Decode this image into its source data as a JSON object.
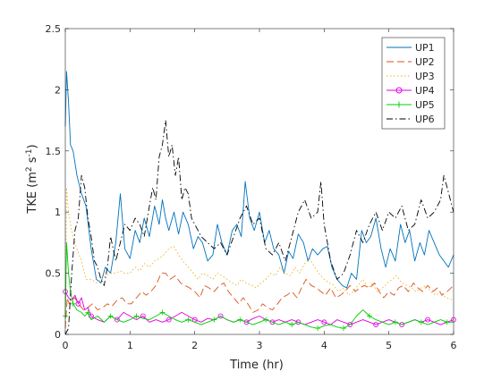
{
  "chart_data": {
    "type": "line",
    "xlabel": "Time (hr)",
    "ylabel_main": "TKE (m",
    "ylabel_sup1": "2",
    "ylabel_mid": " s",
    "ylabel_sup2": "-1",
    "ylabel_end": ")",
    "xlim": [
      0,
      6
    ],
    "ylim": [
      0,
      2.5
    ],
    "xticks": [
      0,
      1,
      2,
      3,
      4,
      5,
      6
    ],
    "xtick_labels": [
      "0",
      "1",
      "2",
      "3",
      "4",
      "5",
      "6"
    ],
    "yticks": [
      0,
      0.5,
      1,
      1.5,
      2,
      2.5
    ],
    "ytick_labels": [
      "0",
      "0.5",
      "1",
      "1.5",
      "2",
      "2.5"
    ],
    "grid": false,
    "legend_position": "top-right",
    "series": [
      {
        "name": "UP1",
        "color": "#0072BD",
        "dash": "solid",
        "marker": "none",
        "x": [
          0,
          0.02,
          0.05,
          0.08,
          0.12,
          0.18,
          0.25,
          0.32,
          0.4,
          0.48,
          0.55,
          0.62,
          0.7,
          0.78,
          0.85,
          0.92,
          1.0,
          1.08,
          1.15,
          1.22,
          1.3,
          1.38,
          1.45,
          1.5,
          1.55,
          1.6,
          1.68,
          1.75,
          1.82,
          1.9,
          1.98,
          2.05,
          2.12,
          2.2,
          2.28,
          2.35,
          2.42,
          2.5,
          2.58,
          2.65,
          2.72,
          2.78,
          2.85,
          2.92,
          3.0,
          3.08,
          3.15,
          3.22,
          3.3,
          3.38,
          3.45,
          3.52,
          3.6,
          3.68,
          3.75,
          3.82,
          3.9,
          3.98,
          4.05,
          4.12,
          4.2,
          4.28,
          4.35,
          4.42,
          4.5,
          4.58,
          4.65,
          4.72,
          4.8,
          4.88,
          4.95,
          5.02,
          5.1,
          5.18,
          5.25,
          5.32,
          5.4,
          5.48,
          5.55,
          5.62,
          5.7,
          5.78,
          5.85,
          5.92,
          6.0
        ],
        "y": [
          1.7,
          2.15,
          1.9,
          1.55,
          1.5,
          1.3,
          1.15,
          1.05,
          0.7,
          0.45,
          0.42,
          0.55,
          0.5,
          0.75,
          1.15,
          0.7,
          0.62,
          0.85,
          0.75,
          0.95,
          0.8,
          1.05,
          0.9,
          1.1,
          0.95,
          0.85,
          1.0,
          0.82,
          1.0,
          0.9,
          0.7,
          0.8,
          0.75,
          0.6,
          0.65,
          0.9,
          0.75,
          0.65,
          0.85,
          0.9,
          0.8,
          1.25,
          0.95,
          0.85,
          1.0,
          0.75,
          0.85,
          0.7,
          0.65,
          0.5,
          0.68,
          0.62,
          0.82,
          0.75,
          0.6,
          0.7,
          0.65,
          0.7,
          0.72,
          0.55,
          0.45,
          0.4,
          0.38,
          0.5,
          0.45,
          0.85,
          0.75,
          0.8,
          0.95,
          0.7,
          0.55,
          0.7,
          0.6,
          0.9,
          0.75,
          0.85,
          0.6,
          0.75,
          0.65,
          0.85,
          0.75,
          0.65,
          0.6,
          0.55,
          0.65
        ]
      },
      {
        "name": "UP2",
        "color": "#D95319",
        "dash": "8,4",
        "marker": "none",
        "x": [
          0,
          0.03,
          0.06,
          0.1,
          0.15,
          0.2,
          0.28,
          0.35,
          0.42,
          0.5,
          0.58,
          0.65,
          0.72,
          0.8,
          0.88,
          0.95,
          1.02,
          1.1,
          1.18,
          1.25,
          1.32,
          1.4,
          1.48,
          1.55,
          1.62,
          1.7,
          1.78,
          1.85,
          1.92,
          2.0,
          2.08,
          2.15,
          2.22,
          2.3,
          2.38,
          2.45,
          2.52,
          2.6,
          2.68,
          2.75,
          2.82,
          2.9,
          2.98,
          3.05,
          3.12,
          3.2,
          3.28,
          3.35,
          3.42,
          3.5,
          3.58,
          3.65,
          3.72,
          3.8,
          3.88,
          3.95,
          4.02,
          4.1,
          4.18,
          4.25,
          4.32,
          4.4,
          4.48,
          4.55,
          4.62,
          4.7,
          4.78,
          4.85,
          4.92,
          5.0,
          5.08,
          5.15,
          5.22,
          5.3,
          5.38,
          5.45,
          5.52,
          5.6,
          5.68,
          5.75,
          5.82,
          5.9,
          6.0
        ],
        "y": [
          0.05,
          0.3,
          0.25,
          0.28,
          0.3,
          0.25,
          0.2,
          0.22,
          0.25,
          0.2,
          0.22,
          0.25,
          0.23,
          0.28,
          0.3,
          0.25,
          0.25,
          0.3,
          0.35,
          0.32,
          0.35,
          0.4,
          0.5,
          0.5,
          0.45,
          0.48,
          0.42,
          0.4,
          0.38,
          0.35,
          0.3,
          0.4,
          0.38,
          0.35,
          0.4,
          0.42,
          0.35,
          0.3,
          0.25,
          0.3,
          0.25,
          0.18,
          0.2,
          0.25,
          0.22,
          0.2,
          0.25,
          0.3,
          0.32,
          0.35,
          0.3,
          0.38,
          0.45,
          0.4,
          0.38,
          0.35,
          0.32,
          0.38,
          0.3,
          0.32,
          0.35,
          0.4,
          0.35,
          0.38,
          0.4,
          0.38,
          0.42,
          0.35,
          0.3,
          0.35,
          0.32,
          0.38,
          0.4,
          0.35,
          0.42,
          0.38,
          0.35,
          0.4,
          0.35,
          0.38,
          0.32,
          0.35,
          0.4
        ]
      },
      {
        "name": "UP3",
        "color": "#EDB120",
        "dash": "1.5,2.5",
        "marker": "none",
        "x": [
          0,
          0.02,
          0.05,
          0.08,
          0.12,
          0.18,
          0.25,
          0.32,
          0.4,
          0.48,
          0.55,
          0.62,
          0.7,
          0.78,
          0.85,
          0.92,
          1.0,
          1.08,
          1.15,
          1.22,
          1.3,
          1.38,
          1.45,
          1.52,
          1.6,
          1.68,
          1.75,
          1.82,
          1.9,
          1.98,
          2.05,
          2.12,
          2.2,
          2.28,
          2.35,
          2.42,
          2.5,
          2.58,
          2.65,
          2.72,
          2.8,
          2.88,
          2.95,
          3.02,
          3.1,
          3.18,
          3.25,
          3.32,
          3.4,
          3.48,
          3.55,
          3.62,
          3.7,
          3.78,
          3.85,
          3.92,
          4.0,
          4.08,
          4.15,
          4.22,
          4.3,
          4.38,
          4.45,
          4.52,
          4.6,
          4.68,
          4.75,
          4.82,
          4.9,
          4.98,
          5.05,
          5.12,
          5.2,
          5.28,
          5.35,
          5.42,
          5.5,
          5.58,
          5.65,
          5.72,
          5.8,
          5.88,
          6.0
        ],
        "y": [
          0.1,
          1.2,
          1.0,
          0.9,
          0.8,
          0.7,
          0.6,
          0.45,
          0.45,
          0.42,
          0.45,
          0.48,
          0.5,
          0.5,
          0.52,
          0.5,
          0.5,
          0.55,
          0.52,
          0.58,
          0.55,
          0.6,
          0.62,
          0.65,
          0.7,
          0.72,
          0.65,
          0.6,
          0.55,
          0.5,
          0.45,
          0.5,
          0.48,
          0.45,
          0.5,
          0.48,
          0.45,
          0.42,
          0.4,
          0.45,
          0.42,
          0.4,
          0.38,
          0.42,
          0.45,
          0.5,
          0.48,
          0.55,
          0.5,
          0.48,
          0.55,
          0.5,
          0.58,
          0.62,
          0.55,
          0.5,
          0.45,
          0.42,
          0.4,
          0.35,
          0.38,
          0.32,
          0.35,
          0.4,
          0.45,
          0.38,
          0.42,
          0.35,
          0.38,
          0.42,
          0.45,
          0.48,
          0.42,
          0.4,
          0.38,
          0.35,
          0.38,
          0.4,
          0.35,
          0.32,
          0.35,
          0.3,
          0.28
        ]
      },
      {
        "name": "UP4",
        "color": "#E000E0",
        "dash": "solid",
        "marker": "circle",
        "x": [
          0,
          0.05,
          0.1,
          0.15,
          0.2,
          0.25,
          0.3,
          0.35,
          0.4,
          0.5,
          0.6,
          0.7,
          0.8,
          0.9,
          1.0,
          1.1,
          1.2,
          1.3,
          1.4,
          1.5,
          1.6,
          1.7,
          1.8,
          1.9,
          2.0,
          2.1,
          2.2,
          2.3,
          2.4,
          2.5,
          2.6,
          2.7,
          2.8,
          2.9,
          3.0,
          3.1,
          3.2,
          3.3,
          3.4,
          3.5,
          3.6,
          3.7,
          3.8,
          3.9,
          4.0,
          4.1,
          4.2,
          4.3,
          4.4,
          4.5,
          4.6,
          4.7,
          4.8,
          4.9,
          5.0,
          5.1,
          5.2,
          5.3,
          5.4,
          5.5,
          5.6,
          5.7,
          5.8,
          5.9,
          6.0
        ],
        "y": [
          0.35,
          0.3,
          0.28,
          0.32,
          0.25,
          0.3,
          0.2,
          0.22,
          0.15,
          0.12,
          0.1,
          0.15,
          0.12,
          0.18,
          0.15,
          0.12,
          0.15,
          0.1,
          0.12,
          0.1,
          0.12,
          0.15,
          0.18,
          0.15,
          0.12,
          0.1,
          0.13,
          0.12,
          0.15,
          0.12,
          0.1,
          0.12,
          0.1,
          0.13,
          0.15,
          0.12,
          0.1,
          0.12,
          0.1,
          0.12,
          0.1,
          0.08,
          0.1,
          0.12,
          0.1,
          0.08,
          0.12,
          0.1,
          0.08,
          0.1,
          0.12,
          0.1,
          0.08,
          0.1,
          0.12,
          0.1,
          0.08,
          0.1,
          0.12,
          0.1,
          0.12,
          0.1,
          0.08,
          0.1,
          0.12
        ]
      },
      {
        "name": "UP5",
        "color": "#00CC00",
        "dash": "solid",
        "marker": "plus",
        "x": [
          0,
          0.02,
          0.05,
          0.08,
          0.12,
          0.18,
          0.25,
          0.3,
          0.35,
          0.4,
          0.5,
          0.6,
          0.7,
          0.8,
          0.9,
          1.0,
          1.1,
          1.2,
          1.3,
          1.4,
          1.5,
          1.6,
          1.7,
          1.8,
          1.9,
          2.0,
          2.1,
          2.2,
          2.3,
          2.4,
          2.5,
          2.6,
          2.7,
          2.8,
          2.9,
          3.0,
          3.1,
          3.2,
          3.3,
          3.4,
          3.5,
          3.6,
          3.7,
          3.8,
          3.9,
          4.0,
          4.1,
          4.2,
          4.3,
          4.4,
          4.5,
          4.6,
          4.7,
          4.8,
          4.9,
          5.0,
          5.1,
          5.2,
          5.3,
          5.4,
          5.5,
          5.6,
          5.7,
          5.8,
          5.9,
          6.0
        ],
        "y": [
          0.15,
          0.75,
          0.5,
          0.35,
          0.25,
          0.2,
          0.18,
          0.15,
          0.18,
          0.12,
          0.15,
          0.1,
          0.15,
          0.12,
          0.1,
          0.12,
          0.15,
          0.13,
          0.12,
          0.15,
          0.18,
          0.15,
          0.12,
          0.1,
          0.12,
          0.1,
          0.08,
          0.1,
          0.12,
          0.15,
          0.12,
          0.1,
          0.12,
          0.1,
          0.08,
          0.1,
          0.12,
          0.1,
          0.08,
          0.1,
          0.08,
          0.1,
          0.08,
          0.06,
          0.05,
          0.07,
          0.08,
          0.06,
          0.05,
          0.08,
          0.15,
          0.2,
          0.15,
          0.12,
          0.1,
          0.08,
          0.1,
          0.08,
          0.1,
          0.12,
          0.1,
          0.08,
          0.1,
          0.12,
          0.1,
          0.1
        ]
      },
      {
        "name": "UP6",
        "color": "#000000",
        "dash": "7,3,1.5,3",
        "marker": "none",
        "x": [
          0,
          0.05,
          0.1,
          0.15,
          0.2,
          0.25,
          0.3,
          0.35,
          0.4,
          0.45,
          0.5,
          0.55,
          0.6,
          0.65,
          0.7,
          0.78,
          0.85,
          0.92,
          1.0,
          1.08,
          1.15,
          1.22,
          1.3,
          1.35,
          1.4,
          1.45,
          1.5,
          1.55,
          1.6,
          1.65,
          1.7,
          1.75,
          1.8,
          1.85,
          1.9,
          1.95,
          2.0,
          2.1,
          2.2,
          2.3,
          2.4,
          2.5,
          2.6,
          2.7,
          2.8,
          2.9,
          3.0,
          3.1,
          3.2,
          3.3,
          3.4,
          3.5,
          3.6,
          3.7,
          3.8,
          3.9,
          3.95,
          4.0,
          4.1,
          4.2,
          4.3,
          4.4,
          4.5,
          4.6,
          4.7,
          4.8,
          4.9,
          5.0,
          5.1,
          5.2,
          5.3,
          5.4,
          5.5,
          5.6,
          5.7,
          5.8,
          5.85,
          5.9,
          6.0
        ],
        "y": [
          0.0,
          0.05,
          0.5,
          0.85,
          0.95,
          1.3,
          1.2,
          0.95,
          0.8,
          0.6,
          0.55,
          0.45,
          0.4,
          0.55,
          0.8,
          0.6,
          0.75,
          0.9,
          0.85,
          0.95,
          0.9,
          0.8,
          1.05,
          1.2,
          1.1,
          1.45,
          1.55,
          1.75,
          1.45,
          1.55,
          1.3,
          1.45,
          1.1,
          1.2,
          1.15,
          0.95,
          0.9,
          0.8,
          0.75,
          0.7,
          0.75,
          0.65,
          0.8,
          0.95,
          1.05,
          0.9,
          0.95,
          0.7,
          0.65,
          0.75,
          0.6,
          0.8,
          1.0,
          1.1,
          0.95,
          1.0,
          1.25,
          0.9,
          0.6,
          0.45,
          0.5,
          0.65,
          0.85,
          0.75,
          0.9,
          1.0,
          0.85,
          1.0,
          0.95,
          1.05,
          0.85,
          0.9,
          1.1,
          0.95,
          1.0,
          1.1,
          1.3,
          1.2,
          1.0
        ]
      }
    ]
  }
}
